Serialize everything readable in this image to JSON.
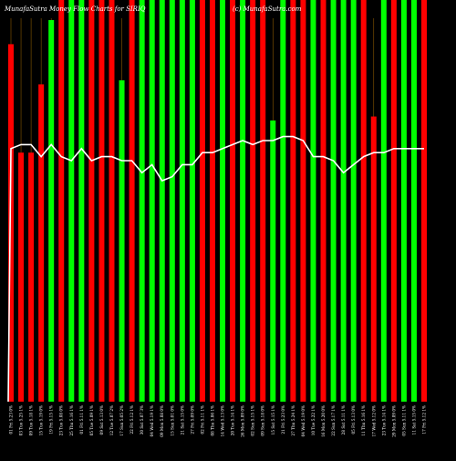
{
  "header": {
    "title": "MunafaSutra Money Flow Charts for SIRIQ",
    "site": "(c) MunafaSutra.com"
  },
  "colors": {
    "background": "#000000",
    "up": "#00ff00",
    "down": "#ff0000",
    "line": "#ffffff",
    "grid": "#8b5a00"
  },
  "chart_data": {
    "type": "bar",
    "title": "MunafaSutra Money Flow Charts for SIRIQ",
    "ylim": [
      0,
      100
    ],
    "grid": true,
    "categories": [
      "01 Fri 5.23 0%",
      "03 Tue 5.25 1%",
      "09 Tue 5.18 1%",
      "15 Tue 5.19 0%",
      "19 Fri 5.15 1%",
      "23 Tue 5.08 0%",
      "25 Thu 5.16 1%",
      "01 Fri 5.11 1%",
      "05 Tue 5.09 1%",
      "09 Sat 5.13 0%",
      "12 Tue 5.07 2%",
      "17 Sun 5.05 2%",
      "22 Fri 5.12 1%",
      "30 Sat 5.07 3%",
      "04 Wed 5.19 1%",
      "09 Mon 5.08 0%",
      "15 Sun 5.01 0%",
      "21 Sat 5.15 0%",
      "27 Fri 5.09 0%",
      "02 Fri 5.11 1%",
      "08 Thu 5.06 1%",
      "14 Wed 5.13 0%",
      "20 Tue 5.14 1%",
      "26 Mon 5.09 0%",
      "02 Sun 5.15 1%",
      "09 Sun 5.18 0%",
      "15 Sat 5.15 1%",
      "21 Fri 5.23 0%",
      "27 Thu 5.24 1%",
      "04 Wed 5.19 0%",
      "10 Tue 5.22 1%",
      "16 Mon 5.20 0%",
      "22 Sun 5.17 1%",
      "28 Sat 5.11 1%",
      "05 Fri 5.13 0%",
      "11 Thu 5.16 1%",
      "17 Wed 5.12 0%",
      "23 Tue 5.14 1%",
      "29 Mon 5.09 0%",
      "05 Sun 5.11 1%",
      "11 Sat 5.15 0%",
      "17 Fri 5.12 1%"
    ],
    "series": [
      {
        "type": "bar",
        "values": [
          89,
          62,
          62,
          79,
          95,
          100,
          100,
          100,
          100,
          100,
          100,
          80,
          100,
          100,
          100,
          100,
          100,
          100,
          100,
          100,
          100,
          100,
          100,
          100,
          100,
          100,
          70,
          100,
          100,
          100,
          100,
          100,
          100,
          100,
          100,
          100,
          71,
          100,
          100,
          100,
          100,
          100
        ],
        "bar_colors": [
          "red",
          "red",
          "red",
          "red",
          "green",
          "red",
          "green",
          "green",
          "red",
          "red",
          "red",
          "green",
          "red",
          "green",
          "green",
          "green",
          "green",
          "green",
          "green",
          "red",
          "red",
          "green",
          "red",
          "green",
          "red",
          "red",
          "green",
          "green",
          "red",
          "red",
          "green",
          "red",
          "green",
          "green",
          "green",
          "red",
          "red",
          "green",
          "red",
          "green",
          "green",
          "red"
        ]
      },
      {
        "type": "line",
        "values": [
          63,
          64,
          64,
          61,
          64,
          61,
          60,
          63,
          60,
          61,
          61,
          60,
          60,
          57,
          59,
          55,
          56,
          59,
          59,
          62,
          62,
          63,
          64,
          65,
          64,
          65,
          65,
          66,
          66,
          65,
          61,
          61,
          60,
          57,
          59,
          61,
          62,
          62,
          63,
          63,
          63,
          63
        ]
      }
    ]
  }
}
